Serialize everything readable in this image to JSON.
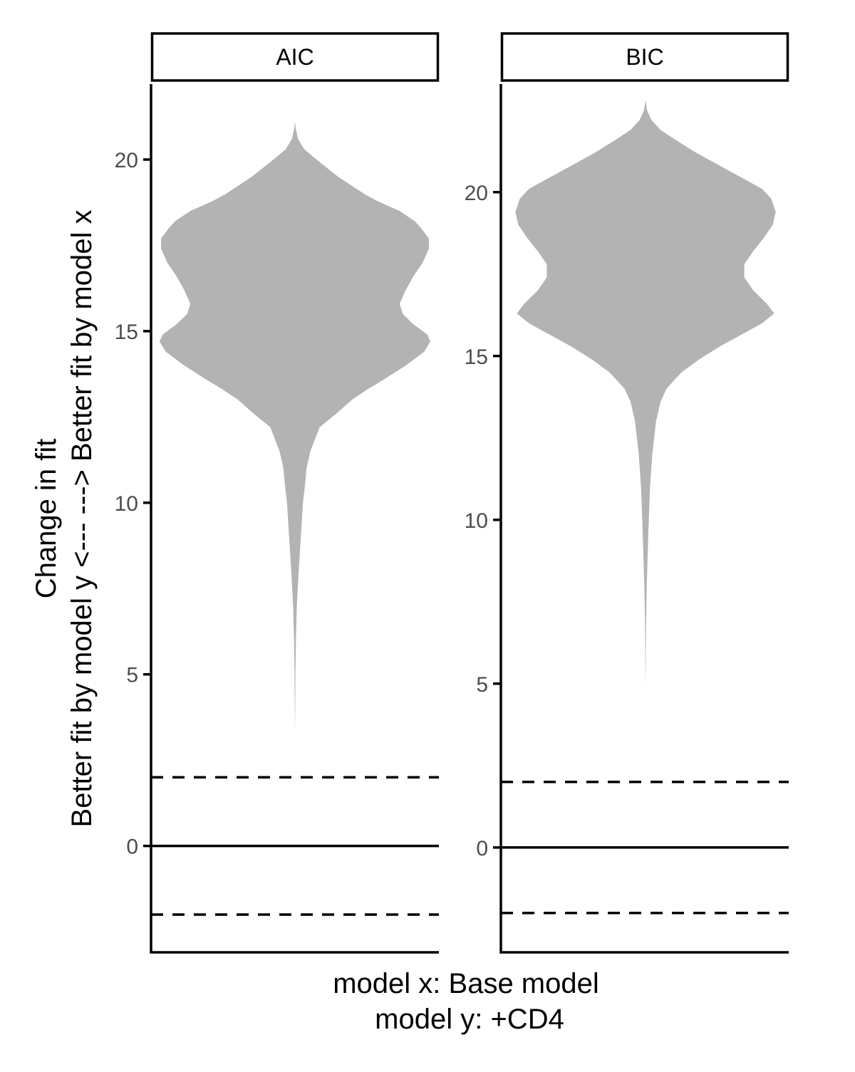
{
  "chart_data": {
    "type": "violin",
    "ylabel_lines": [
      "Change in fit",
      "Better fit by model y <---  ---> Better fit by model x"
    ],
    "xlabel_lines": [
      "model x:  Base model",
      "model y:  +CD4"
    ],
    "colors": {
      "violin_fill": "#b3b3b3",
      "lines": "#000000",
      "tick_text": "#4d4d4d"
    },
    "grid": false,
    "panels": [
      {
        "strip": "AIC",
        "ylim": [
          -3.1,
          22.2
        ],
        "yticks": [
          0,
          5,
          10,
          15,
          20
        ],
        "ytick_labels": [
          "0",
          "5",
          "10",
          "15",
          "20"
        ],
        "reference_lines": [
          {
            "y": 0,
            "style": "solid"
          },
          {
            "y": 2,
            "style": "dashed"
          },
          {
            "y": -2,
            "style": "dashed"
          }
        ],
        "violin": {
          "min": 3.3,
          "max": 21.1,
          "density_profile": [
            [
              21.1,
              0.0
            ],
            [
              20.9,
              0.005
            ],
            [
              20.6,
              0.02
            ],
            [
              20.3,
              0.06
            ],
            [
              20.0,
              0.14
            ],
            [
              19.5,
              0.28
            ],
            [
              19.0,
              0.45
            ],
            [
              18.8,
              0.53
            ],
            [
              18.5,
              0.68
            ],
            [
              18.2,
              0.78
            ],
            [
              18.0,
              0.82
            ],
            [
              17.7,
              0.87
            ],
            [
              17.4,
              0.87
            ],
            [
              17.0,
              0.83
            ],
            [
              16.6,
              0.77
            ],
            [
              16.2,
              0.72
            ],
            [
              15.8,
              0.68
            ],
            [
              15.5,
              0.7
            ],
            [
              15.2,
              0.77
            ],
            [
              14.9,
              0.86
            ],
            [
              14.7,
              0.88
            ],
            [
              14.4,
              0.84
            ],
            [
              14.0,
              0.72
            ],
            [
              13.6,
              0.58
            ],
            [
              13.3,
              0.47
            ],
            [
              13.0,
              0.37
            ],
            [
              12.6,
              0.27
            ],
            [
              12.2,
              0.16
            ],
            [
              11.5,
              0.1
            ],
            [
              11.0,
              0.075
            ],
            [
              10.5,
              0.065
            ],
            [
              10.0,
              0.052
            ],
            [
              9.0,
              0.038
            ],
            [
              8.0,
              0.024
            ],
            [
              7.0,
              0.012
            ],
            [
              6.0,
              0.006
            ],
            [
              5.0,
              0.003
            ],
            [
              4.0,
              0.0015
            ],
            [
              3.3,
              0.0
            ]
          ]
        }
      },
      {
        "strip": "BIC",
        "ylim": [
          -3.2,
          23.3
        ],
        "yticks": [
          0,
          5,
          10,
          15,
          20
        ],
        "ytick_labels": [
          "0",
          "5",
          "10",
          "15",
          "20"
        ],
        "reference_lines": [
          {
            "y": 0,
            "style": "solid"
          },
          {
            "y": 2,
            "style": "dashed"
          },
          {
            "y": -2,
            "style": "dashed"
          }
        ],
        "violin": {
          "min": 4.9,
          "max": 22.8,
          "density_profile": [
            [
              22.8,
              0.0
            ],
            [
              22.5,
              0.01
            ],
            [
              22.2,
              0.04
            ],
            [
              21.9,
              0.1
            ],
            [
              21.6,
              0.2
            ],
            [
              21.2,
              0.34
            ],
            [
              20.8,
              0.5
            ],
            [
              20.4,
              0.66
            ],
            [
              20.1,
              0.78
            ],
            [
              19.8,
              0.84
            ],
            [
              19.4,
              0.87
            ],
            [
              19.0,
              0.85
            ],
            [
              18.6,
              0.79
            ],
            [
              18.2,
              0.72
            ],
            [
              17.8,
              0.66
            ],
            [
              17.4,
              0.66
            ],
            [
              17.0,
              0.72
            ],
            [
              16.6,
              0.81
            ],
            [
              16.3,
              0.86
            ],
            [
              16.0,
              0.78
            ],
            [
              15.7,
              0.66
            ],
            [
              15.3,
              0.5
            ],
            [
              14.9,
              0.36
            ],
            [
              14.5,
              0.24
            ],
            [
              14.0,
              0.14
            ],
            [
              13.6,
              0.1
            ],
            [
              13.0,
              0.07
            ],
            [
              12.0,
              0.045
            ],
            [
              11.0,
              0.03
            ],
            [
              10.0,
              0.022
            ],
            [
              9.0,
              0.015
            ],
            [
              8.0,
              0.008
            ],
            [
              7.0,
              0.004
            ],
            [
              6.0,
              0.002
            ],
            [
              4.9,
              0.0
            ]
          ]
        }
      }
    ]
  }
}
